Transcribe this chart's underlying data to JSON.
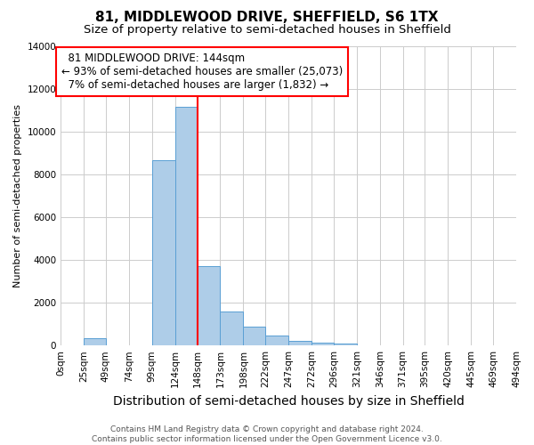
{
  "title": "81, MIDDLEWOOD DRIVE, SHEFFIELD, S6 1TX",
  "subtitle": "Size of property relative to semi-detached houses in Sheffield",
  "xlabel": "Distribution of semi-detached houses by size in Sheffield",
  "ylabel": "Number of semi-detached properties",
  "property_size": 144,
  "property_label": "81 MIDDLEWOOD DRIVE: 144sqm",
  "pct_smaller": 93,
  "count_smaller": 25073,
  "pct_larger": 7,
  "count_larger": 1832,
  "bin_edges": [
    0,
    25,
    49,
    74,
    99,
    124,
    148,
    173,
    198,
    222,
    247,
    272,
    296,
    321,
    346,
    371,
    395,
    420,
    445,
    469,
    494
  ],
  "bin_labels": [
    "0sqm",
    "25sqm",
    "49sqm",
    "74sqm",
    "99sqm",
    "124sqm",
    "148sqm",
    "173sqm",
    "198sqm",
    "222sqm",
    "247sqm",
    "272sqm",
    "296sqm",
    "321sqm",
    "346sqm",
    "371sqm",
    "395sqm",
    "420sqm",
    "445sqm",
    "469sqm",
    "494sqm"
  ],
  "bar_heights": [
    0,
    350,
    0,
    0,
    8650,
    11150,
    3700,
    1600,
    900,
    450,
    200,
    150,
    100,
    0,
    0,
    0,
    0,
    0,
    0,
    0
  ],
  "bar_color": "#aecde8",
  "bar_edge_color": "#5a9fd4",
  "red_line_x": 148,
  "ylim": [
    0,
    14000
  ],
  "yticks": [
    0,
    2000,
    4000,
    6000,
    8000,
    10000,
    12000,
    14000
  ],
  "grid_color": "#cccccc",
  "footer": "Contains HM Land Registry data © Crown copyright and database right 2024.\nContains public sector information licensed under the Open Government Licence v3.0.",
  "title_fontsize": 11,
  "subtitle_fontsize": 9.5,
  "xlabel_fontsize": 10,
  "ylabel_fontsize": 8,
  "tick_fontsize": 7.5,
  "annotation_fontsize": 8.5,
  "footer_fontsize": 6.5
}
